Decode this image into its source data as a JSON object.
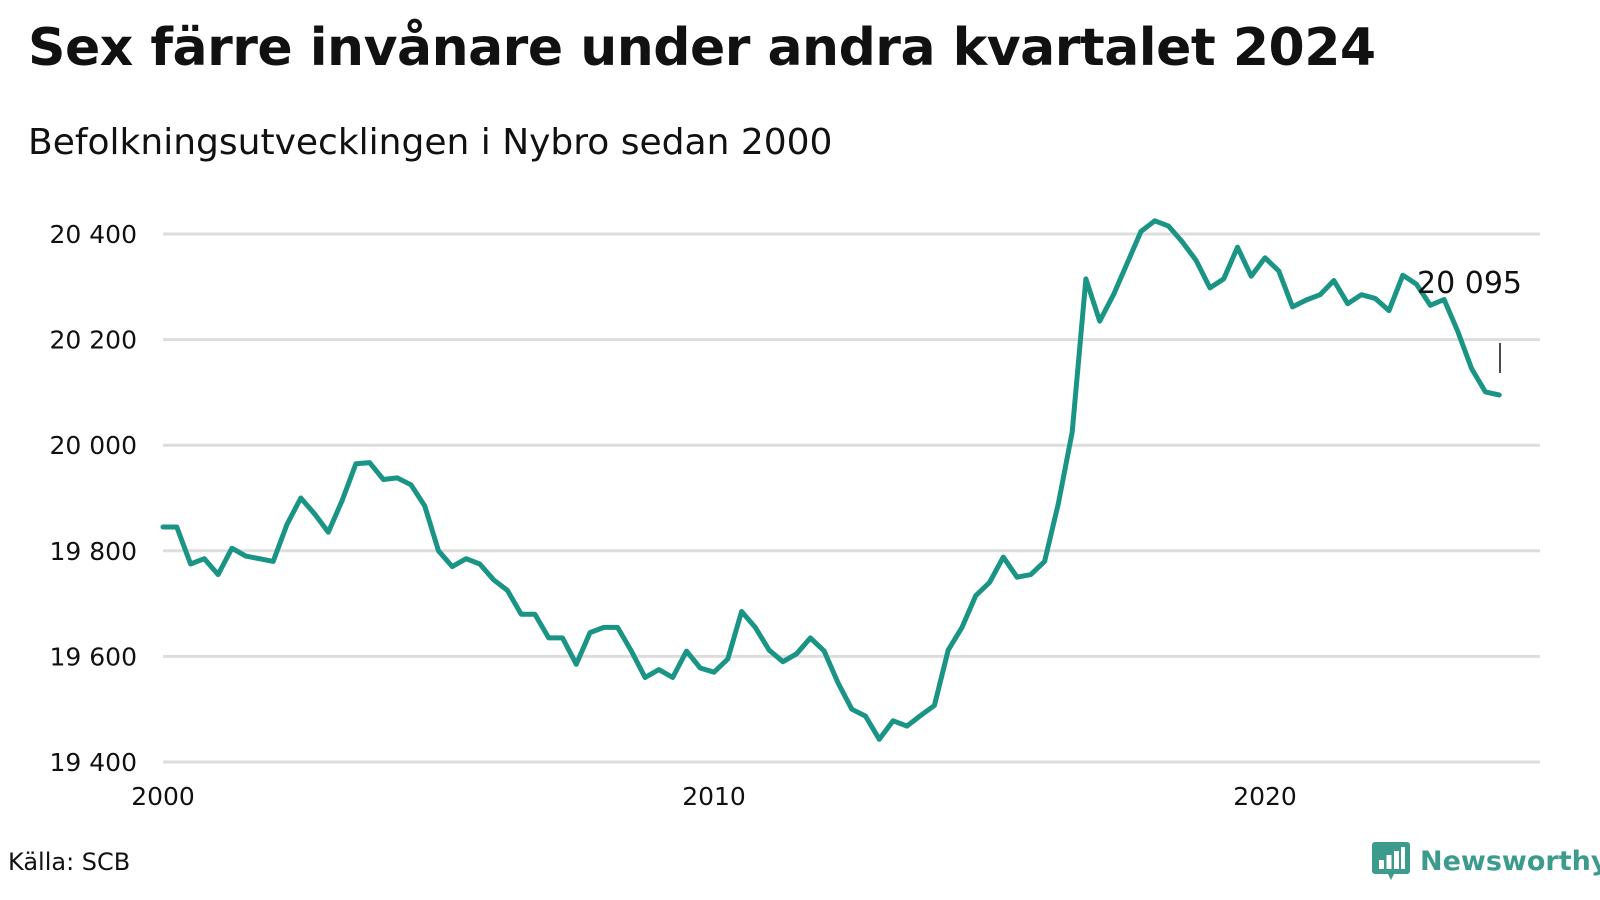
{
  "title": "Sex färre invånare under andra kvartalet 2024",
  "subtitle": "Befolkningsutvecklingen i Nybro sedan 2000",
  "source": "Källa: SCB",
  "brand": {
    "name": "Newsworthy",
    "color": "#3d9b8d",
    "icon": "bar-chart-icon"
  },
  "colors": {
    "line": "#1a9484",
    "grid": "#dddddd"
  },
  "chart_data": {
    "type": "line",
    "title": "Sex färre invånare under andra kvartalet 2024",
    "subtitle": "Befolkningsutvecklingen i Nybro sedan 2000",
    "xlabel": "",
    "ylabel": "",
    "xlim": [
      2000,
      2025.75
    ],
    "ylim": [
      19400,
      20450
    ],
    "x_ticks": [
      2000,
      2010,
      2020
    ],
    "x_tick_labels": [
      "2000",
      "2010",
      "2020"
    ],
    "y_ticks": [
      19400,
      19600,
      19800,
      20000,
      20200,
      20400
    ],
    "y_tick_labels": [
      "19 400",
      "19 600",
      "19 800",
      "20 000",
      "20 200",
      "20 400"
    ],
    "grid": true,
    "legend": "none",
    "end_label": "20 095",
    "series": [
      {
        "values": [
          19845,
          19845,
          19775,
          19785,
          19755,
          19805,
          19790,
          19785,
          19780,
          19850,
          19900,
          19870,
          19835,
          19895,
          19965,
          19967,
          19935,
          19938,
          19925,
          19885,
          19800,
          19770,
          19785,
          19775,
          19745,
          19725,
          19680,
          19680,
          19635,
          19635,
          19585,
          19645,
          19655,
          19655,
          19610,
          19560,
          19575,
          19560,
          19610,
          19578,
          19570,
          19595,
          19685,
          19655,
          19612,
          19590,
          19605,
          19635,
          19610,
          19550,
          19500,
          19487,
          19443,
          19478,
          19468,
          19488,
          19507,
          19612,
          19655,
          19715,
          19740,
          19788,
          19750,
          19755,
          19780,
          19890,
          20025,
          20315,
          20235,
          20285,
          20345,
          20405,
          20425,
          20415,
          20385,
          20350,
          20298,
          20315,
          20375,
          20320,
          20355,
          20330,
          20262,
          20275,
          20285,
          20312,
          20268,
          20285,
          20278,
          20255,
          20322,
          20305,
          20265,
          20276,
          20215,
          20145,
          20101,
          20095
        ],
        "x_start": 2000,
        "x_step": 0.25
      }
    ]
  }
}
